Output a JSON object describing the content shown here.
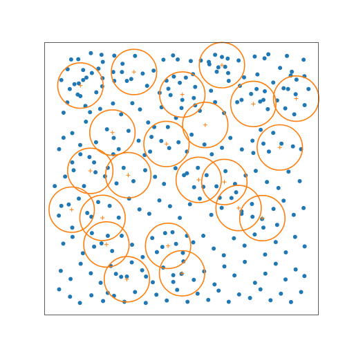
{
  "chart_data": {
    "type": "scatter",
    "title": "",
    "xlabel": "",
    "ylabel": "",
    "xlim": [
      0,
      1
    ],
    "ylim": [
      0,
      1
    ],
    "axis_ticks": false,
    "grid": false,
    "colors": {
      "points": "#1f77b4",
      "circles": "#ff7f0e",
      "frame": "#333333"
    },
    "circle_radius": 0.083,
    "points": [
      [
        0.168,
        0.962
      ],
      [
        0.207,
        0.956
      ],
      [
        0.254,
        0.953
      ],
      [
        0.33,
        0.952
      ],
      [
        0.469,
        0.954
      ],
      [
        0.623,
        0.956
      ],
      [
        0.669,
        0.942
      ],
      [
        0.818,
        0.958
      ],
      [
        0.886,
        0.952
      ],
      [
        0.096,
        0.939
      ],
      [
        0.122,
        0.94
      ],
      [
        0.212,
        0.93
      ],
      [
        0.284,
        0.923
      ],
      [
        0.434,
        0.938
      ],
      [
        0.486,
        0.939
      ],
      [
        0.534,
        0.933
      ],
      [
        0.571,
        0.935
      ],
      [
        0.602,
        0.921
      ],
      [
        0.66,
        0.912
      ],
      [
        0.709,
        0.935
      ],
      [
        0.768,
        0.95
      ],
      [
        0.804,
        0.943
      ],
      [
        0.861,
        0.908
      ],
      [
        0.947,
        0.938
      ],
      [
        0.083,
        0.903
      ],
      [
        0.14,
        0.9
      ],
      [
        0.172,
        0.889
      ],
      [
        0.211,
        0.87
      ],
      [
        0.282,
        0.893
      ],
      [
        0.316,
        0.867
      ],
      [
        0.358,
        0.887
      ],
      [
        0.398,
        0.898
      ],
      [
        0.445,
        0.861
      ],
      [
        0.494,
        0.853
      ],
      [
        0.542,
        0.885
      ],
      [
        0.629,
        0.894
      ],
      [
        0.671,
        0.889
      ],
      [
        0.729,
        0.873
      ],
      [
        0.778,
        0.884
      ],
      [
        0.904,
        0.894
      ],
      [
        0.921,
        0.865
      ],
      [
        0.06,
        0.863
      ],
      [
        0.091,
        0.83
      ],
      [
        0.124,
        0.851
      ],
      [
        0.152,
        0.872
      ],
      [
        0.188,
        0.818
      ],
      [
        0.254,
        0.86
      ],
      [
        0.3,
        0.86
      ],
      [
        0.374,
        0.842
      ],
      [
        0.42,
        0.816
      ],
      [
        0.452,
        0.831
      ],
      [
        0.472,
        0.876
      ],
      [
        0.55,
        0.838
      ],
      [
        0.608,
        0.824
      ],
      [
        0.673,
        0.86
      ],
      [
        0.714,
        0.842
      ],
      [
        0.805,
        0.822
      ],
      [
        0.836,
        0.854
      ],
      [
        0.874,
        0.833
      ],
      [
        0.918,
        0.811
      ],
      [
        0.95,
        0.877
      ],
      [
        0.068,
        0.743
      ],
      [
        0.082,
        0.781
      ],
      [
        0.13,
        0.804
      ],
      [
        0.148,
        0.768
      ],
      [
        0.202,
        0.757
      ],
      [
        0.249,
        0.777
      ],
      [
        0.279,
        0.737
      ],
      [
        0.32,
        0.778
      ],
      [
        0.348,
        0.755
      ],
      [
        0.378,
        0.707
      ],
      [
        0.427,
        0.763
      ],
      [
        0.48,
        0.724
      ],
      [
        0.503,
        0.79
      ],
      [
        0.545,
        0.797
      ],
      [
        0.567,
        0.75
      ],
      [
        0.623,
        0.782
      ],
      [
        0.656,
        0.742
      ],
      [
        0.704,
        0.782
      ],
      [
        0.755,
        0.812
      ],
      [
        0.788,
        0.784
      ],
      [
        0.816,
        0.756
      ],
      [
        0.85,
        0.788
      ],
      [
        0.88,
        0.759
      ],
      [
        0.913,
        0.737
      ],
      [
        0.951,
        0.771
      ],
      [
        0.052,
        0.609
      ],
      [
        0.068,
        0.651
      ],
      [
        0.1,
        0.668
      ],
      [
        0.129,
        0.624
      ],
      [
        0.163,
        0.58
      ],
      [
        0.187,
        0.634
      ],
      [
        0.227,
        0.682
      ],
      [
        0.252,
        0.65
      ],
      [
        0.27,
        0.609
      ],
      [
        0.306,
        0.676
      ],
      [
        0.343,
        0.64
      ],
      [
        0.365,
        0.587
      ],
      [
        0.39,
        0.654
      ],
      [
        0.426,
        0.639
      ],
      [
        0.455,
        0.613
      ],
      [
        0.489,
        0.634
      ],
      [
        0.537,
        0.662
      ],
      [
        0.584,
        0.626
      ],
      [
        0.611,
        0.59
      ],
      [
        0.648,
        0.614
      ],
      [
        0.679,
        0.65
      ],
      [
        0.721,
        0.608
      ],
      [
        0.763,
        0.595
      ],
      [
        0.8,
        0.629
      ],
      [
        0.836,
        0.669
      ],
      [
        0.866,
        0.629
      ],
      [
        0.908,
        0.619
      ],
      [
        0.938,
        0.609
      ],
      [
        0.036,
        0.473
      ],
      [
        0.074,
        0.508
      ],
      [
        0.105,
        0.531
      ],
      [
        0.143,
        0.473
      ],
      [
        0.185,
        0.524
      ],
      [
        0.22,
        0.509
      ],
      [
        0.262,
        0.483
      ],
      [
        0.288,
        0.54
      ],
      [
        0.324,
        0.491
      ],
      [
        0.367,
        0.531
      ],
      [
        0.403,
        0.507
      ],
      [
        0.436,
        0.481
      ],
      [
        0.478,
        0.539
      ],
      [
        0.509,
        0.513
      ],
      [
        0.546,
        0.469
      ],
      [
        0.592,
        0.513
      ],
      [
        0.628,
        0.472
      ],
      [
        0.661,
        0.528
      ],
      [
        0.696,
        0.481
      ],
      [
        0.735,
        0.512
      ],
      [
        0.772,
        0.529
      ],
      [
        0.813,
        0.488
      ],
      [
        0.855,
        0.466
      ],
      [
        0.892,
        0.526
      ],
      [
        0.933,
        0.491
      ],
      [
        0.051,
        0.364
      ],
      [
        0.087,
        0.405
      ],
      [
        0.124,
        0.427
      ],
      [
        0.155,
        0.374
      ],
      [
        0.195,
        0.414
      ],
      [
        0.237,
        0.4
      ],
      [
        0.27,
        0.357
      ],
      [
        0.308,
        0.427
      ],
      [
        0.346,
        0.387
      ],
      [
        0.382,
        0.371
      ],
      [
        0.419,
        0.42
      ],
      [
        0.458,
        0.399
      ],
      [
        0.494,
        0.356
      ],
      [
        0.531,
        0.406
      ],
      [
        0.567,
        0.427
      ],
      [
        0.609,
        0.367
      ],
      [
        0.647,
        0.393
      ],
      [
        0.683,
        0.429
      ],
      [
        0.72,
        0.371
      ],
      [
        0.758,
        0.407
      ],
      [
        0.795,
        0.352
      ],
      [
        0.837,
        0.389
      ],
      [
        0.874,
        0.419
      ],
      [
        0.911,
        0.367
      ],
      [
        0.947,
        0.392
      ],
      [
        0.067,
        0.261
      ],
      [
        0.101,
        0.286
      ],
      [
        0.139,
        0.226
      ],
      [
        0.172,
        0.3
      ],
      [
        0.207,
        0.262
      ],
      [
        0.246,
        0.234
      ],
      [
        0.281,
        0.29
      ],
      [
        0.319,
        0.257
      ],
      [
        0.358,
        0.212
      ],
      [
        0.393,
        0.282
      ],
      [
        0.43,
        0.249
      ],
      [
        0.467,
        0.303
      ],
      [
        0.505,
        0.227
      ],
      [
        0.543,
        0.266
      ],
      [
        0.58,
        0.29
      ],
      [
        0.618,
        0.243
      ],
      [
        0.655,
        0.218
      ],
      [
        0.692,
        0.281
      ],
      [
        0.731,
        0.254
      ],
      [
        0.768,
        0.295
      ],
      [
        0.806,
        0.221
      ],
      [
        0.845,
        0.267
      ],
      [
        0.882,
        0.229
      ],
      [
        0.916,
        0.286
      ],
      [
        0.951,
        0.251
      ],
      [
        0.058,
        0.161
      ],
      [
        0.094,
        0.131
      ],
      [
        0.131,
        0.187
      ],
      [
        0.168,
        0.152
      ],
      [
        0.204,
        0.117
      ],
      [
        0.241,
        0.179
      ],
      [
        0.279,
        0.139
      ],
      [
        0.318,
        0.192
      ],
      [
        0.356,
        0.163
      ],
      [
        0.395,
        0.119
      ],
      [
        0.433,
        0.173
      ],
      [
        0.47,
        0.145
      ],
      [
        0.507,
        0.196
      ],
      [
        0.545,
        0.128
      ],
      [
        0.583,
        0.159
      ],
      [
        0.621,
        0.111
      ],
      [
        0.657,
        0.177
      ],
      [
        0.694,
        0.144
      ],
      [
        0.732,
        0.194
      ],
      [
        0.769,
        0.117
      ],
      [
        0.807,
        0.151
      ],
      [
        0.845,
        0.187
      ],
      [
        0.881,
        0.129
      ],
      [
        0.918,
        0.166
      ],
      [
        0.95,
        0.142
      ],
      [
        0.052,
        0.093
      ],
      [
        0.092,
        0.066
      ],
      [
        0.128,
        0.043
      ],
      [
        0.17,
        0.071
      ],
      [
        0.213,
        0.05
      ],
      [
        0.253,
        0.069
      ],
      [
        0.291,
        0.047
      ],
      [
        0.33,
        0.083
      ],
      [
        0.369,
        0.043
      ],
      [
        0.408,
        0.073
      ],
      [
        0.446,
        0.052
      ],
      [
        0.484,
        0.091
      ],
      [
        0.522,
        0.047
      ],
      [
        0.559,
        0.077
      ],
      [
        0.598,
        0.054
      ],
      [
        0.636,
        0.088
      ],
      [
        0.673,
        0.047
      ],
      [
        0.711,
        0.074
      ],
      [
        0.751,
        0.061
      ],
      [
        0.789,
        0.093
      ],
      [
        0.826,
        0.053
      ],
      [
        0.864,
        0.077
      ],
      [
        0.901,
        0.046
      ],
      [
        0.938,
        0.083
      ],
      [
        0.108,
        0.848
      ],
      [
        0.14,
        0.863
      ],
      [
        0.12,
        0.81
      ],
      [
        0.196,
        0.905
      ],
      [
        0.25,
        0.893
      ],
      [
        0.21,
        0.84
      ],
      [
        0.516,
        0.872
      ],
      [
        0.46,
        0.808
      ],
      [
        0.5,
        0.76
      ],
      [
        0.55,
        0.77
      ],
      [
        0.6,
        0.93
      ],
      [
        0.648,
        0.948
      ],
      [
        0.635,
        0.91
      ],
      [
        0.72,
        0.79
      ],
      [
        0.8,
        0.79
      ],
      [
        0.775,
        0.83
      ],
      [
        0.9,
        0.88
      ],
      [
        0.89,
        0.83
      ],
      [
        0.965,
        0.83
      ],
      [
        0.15,
        0.71
      ],
      [
        0.165,
        0.745
      ],
      [
        0.4,
        0.69
      ],
      [
        0.385,
        0.6
      ],
      [
        0.52,
        0.6
      ],
      [
        0.45,
        0.69
      ],
      [
        0.79,
        0.68
      ],
      [
        0.82,
        0.6
      ],
      [
        0.76,
        0.64
      ],
      [
        0.1,
        0.56
      ],
      [
        0.13,
        0.59
      ],
      [
        0.18,
        0.56
      ],
      [
        0.23,
        0.54
      ],
      [
        0.25,
        0.59
      ],
      [
        0.52,
        0.52
      ],
      [
        0.56,
        0.54
      ],
      [
        0.58,
        0.47
      ],
      [
        0.64,
        0.43
      ],
      [
        0.7,
        0.45
      ],
      [
        0.72,
        0.38
      ],
      [
        0.76,
        0.36
      ],
      [
        0.8,
        0.32
      ],
      [
        0.85,
        0.33
      ],
      [
        0.06,
        0.4
      ],
      [
        0.1,
        0.32
      ],
      [
        0.17,
        0.36
      ],
      [
        0.18,
        0.25
      ],
      [
        0.23,
        0.29
      ],
      [
        0.44,
        0.3
      ],
      [
        0.48,
        0.26
      ],
      [
        0.52,
        0.29
      ],
      [
        0.41,
        0.23
      ],
      [
        0.47,
        0.12
      ],
      [
        0.5,
        0.15
      ],
      [
        0.26,
        0.15
      ],
      [
        0.3,
        0.14
      ],
      [
        0.23,
        0.08
      ],
      [
        0.37,
        0.14
      ]
    ],
    "centers": [
      [
        0.13,
        0.843
      ],
      [
        0.326,
        0.893
      ],
      [
        0.503,
        0.81
      ],
      [
        0.648,
        0.918
      ],
      [
        0.763,
        0.775
      ],
      [
        0.92,
        0.795
      ],
      [
        0.247,
        0.67
      ],
      [
        0.445,
        0.628
      ],
      [
        0.587,
        0.698
      ],
      [
        0.86,
        0.615
      ],
      [
        0.166,
        0.529
      ],
      [
        0.305,
        0.513
      ],
      [
        0.657,
        0.488
      ],
      [
        0.098,
        0.386
      ],
      [
        0.211,
        0.356
      ],
      [
        0.563,
        0.496
      ],
      [
        0.709,
        0.392
      ],
      [
        0.796,
        0.355
      ],
      [
        0.225,
        0.258
      ],
      [
        0.451,
        0.253
      ],
      [
        0.502,
        0.152
      ],
      [
        0.3,
        0.13
      ]
    ]
  }
}
